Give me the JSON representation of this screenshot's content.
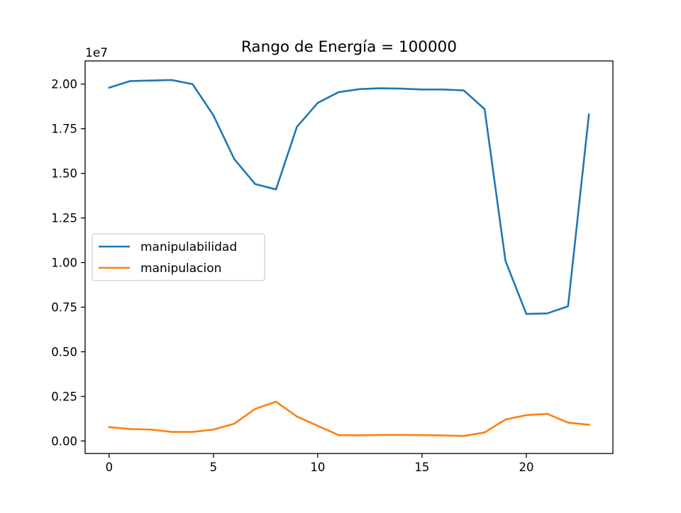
{
  "chart_data": {
    "type": "line",
    "title": "Rango de Energía = 100000",
    "xlabel": "",
    "ylabel": "",
    "y_offset_label": "1e7",
    "x": [
      0,
      1,
      2,
      3,
      4,
      5,
      6,
      7,
      8,
      9,
      10,
      11,
      12,
      13,
      14,
      15,
      16,
      17,
      18,
      19,
      20,
      21,
      22,
      23
    ],
    "xlim": [
      -1.15,
      24.15
    ],
    "ylim": [
      -0.07,
      2.13
    ],
    "x_ticks": [
      0,
      5,
      10,
      15,
      20
    ],
    "x_tick_labels": [
      "0",
      "5",
      "10",
      "15",
      "20"
    ],
    "y_ticks": [
      0,
      0.25,
      0.5,
      0.75,
      1.0,
      1.25,
      1.5,
      1.75,
      2.0
    ],
    "y_tick_labels": [
      "0.00",
      "0.25",
      "0.50",
      "0.75",
      "1.00",
      "1.25",
      "1.50",
      "1.75",
      "2.00"
    ],
    "grid": false,
    "legend_position": "center-left",
    "series": [
      {
        "name": "manipulabilidad",
        "color": "#1f77b4",
        "values": [
          1.98,
          2.017,
          2.02,
          2.023,
          2.0,
          1.825,
          1.58,
          1.44,
          1.41,
          1.76,
          1.895,
          1.955,
          1.972,
          1.977,
          1.975,
          1.97,
          1.97,
          1.965,
          1.86,
          1.01,
          0.712,
          0.715,
          0.755,
          1.83
        ]
      },
      {
        "name": "manipulacion",
        "color": "#ff7f0e",
        "values": [
          0.078,
          0.067,
          0.064,
          0.051,
          0.051,
          0.064,
          0.097,
          0.18,
          0.22,
          0.137,
          0.085,
          0.033,
          0.032,
          0.034,
          0.034,
          0.033,
          0.031,
          0.028,
          0.048,
          0.12,
          0.145,
          0.152,
          0.103,
          0.091
        ]
      }
    ]
  }
}
